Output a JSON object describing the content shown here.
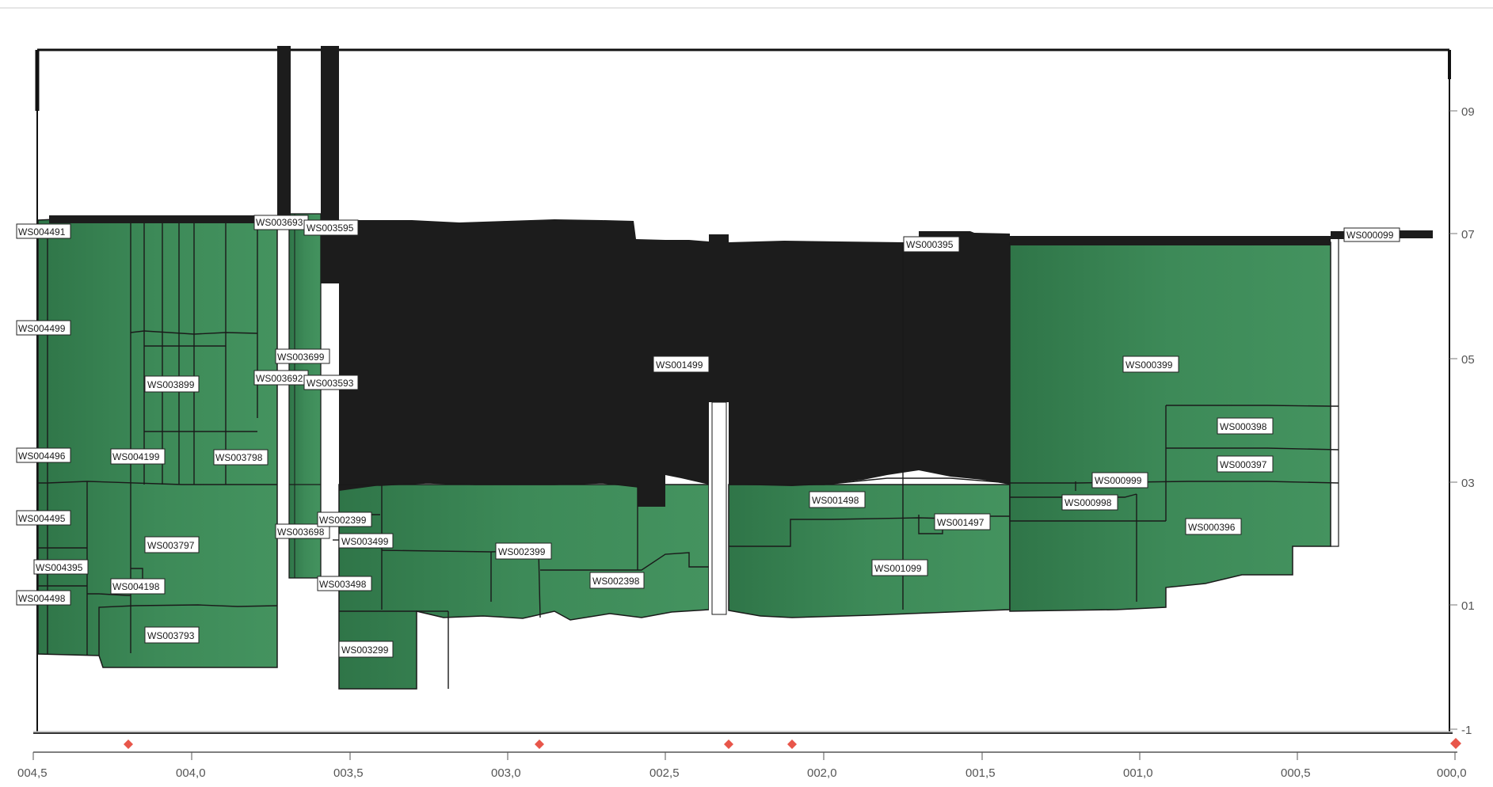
{
  "diagram": {
    "colors": {
      "fill": "#3f8a5a",
      "dark": "#1c1c1c",
      "outline": "#1a1a1a",
      "marker": "#e8564a",
      "frame": "#111111"
    },
    "x_ticks": [
      "004,5",
      "004,0",
      "003,5",
      "003,0",
      "002,5",
      "002,0",
      "001,5",
      "001,0",
      "000,5",
      "000,0"
    ],
    "y_ticks": [
      "09",
      "07",
      "05",
      "03",
      "01",
      "-1"
    ],
    "labels": {
      "L01": "WS004491",
      "L02": "WS004499",
      "L03": "WS004496",
      "L04": "WS004495",
      "L05": "WS004395",
      "L06": "WS004498",
      "L07": "WS003899",
      "L08": "WS004199",
      "L09": "WS003798",
      "L10": "WS003797",
      "L11": "WS004198",
      "L12": "WS003793",
      "L13": "WS003693",
      "L14": "WS003595",
      "L15": "WS003699",
      "L16": "WS003692",
      "L17": "WS003593",
      "L18": "WS003698",
      "L19": "WS002399",
      "L20": "WS003499",
      "L21": "WS003498",
      "L22": "WS003299",
      "L23": "WS002399",
      "L24": "WS002398",
      "L25": "WS001499",
      "L26": "WS001498",
      "L27": "WS001497",
      "L28": "WS001099",
      "L29": "WS000395",
      "L30": "WS000399",
      "L31": "WS000398",
      "L32": "WS000397",
      "L33": "WS000999",
      "L34": "WS000998",
      "L35": "WS000396",
      "L36": "WS000099"
    }
  }
}
